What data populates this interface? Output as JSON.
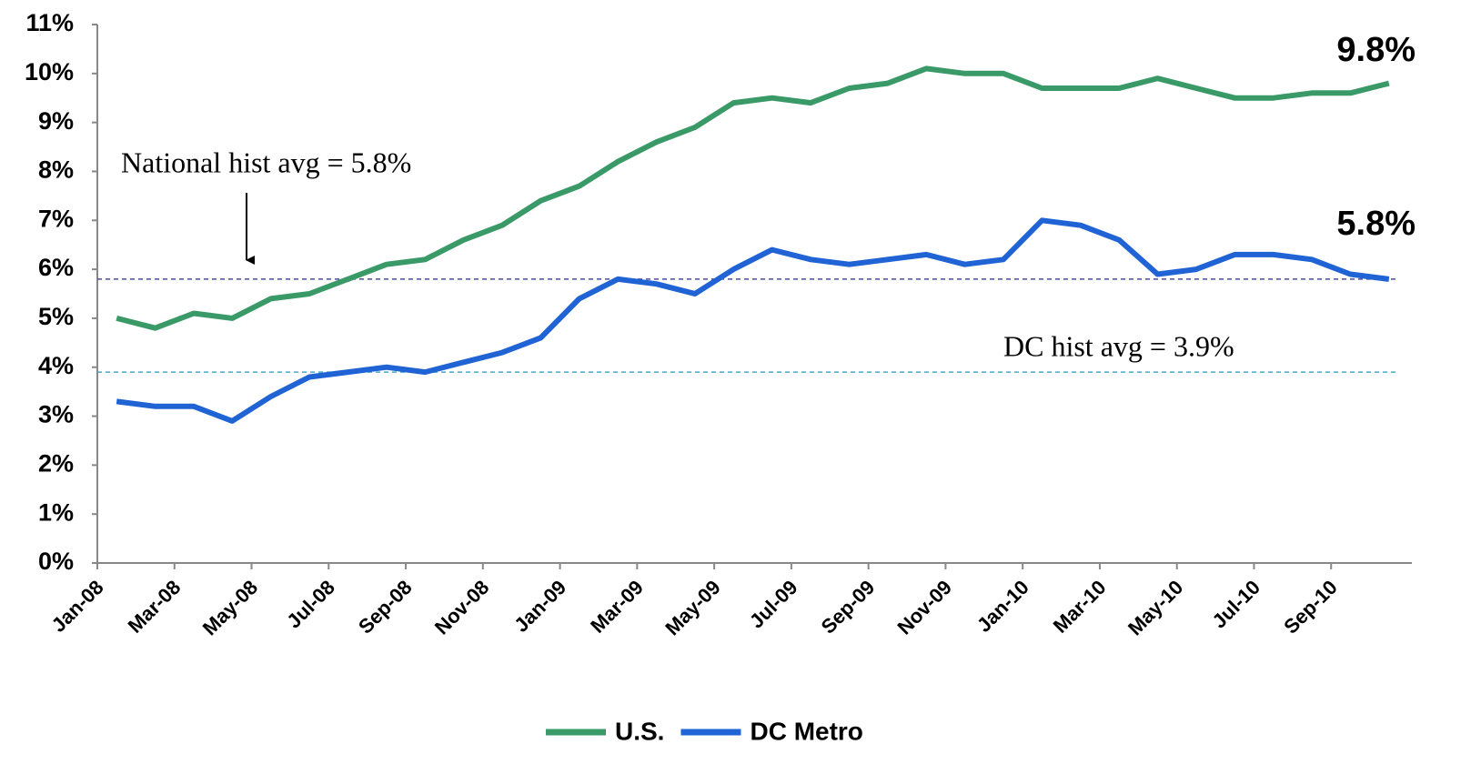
{
  "chart_data": {
    "type": "line",
    "categories": [
      "Jan-08",
      null,
      "Mar-08",
      null,
      "May-08",
      null,
      "Jul-08",
      null,
      "Sep-08",
      null,
      "Nov-08",
      null,
      "Jan-09",
      null,
      "Mar-09",
      null,
      "May-09",
      null,
      "Jul-09",
      null,
      "Sep-09",
      null,
      "Nov-09",
      null,
      "Jan-10",
      null,
      "Mar-10",
      null,
      "May-10",
      null,
      "Jul-10",
      null,
      "Sep-10",
      null
    ],
    "series": [
      {
        "name": "U.S.",
        "color": "#3a9a67",
        "end_label": "9.8%",
        "values": [
          5.0,
          4.8,
          5.1,
          5.0,
          5.4,
          5.5,
          5.8,
          6.1,
          6.2,
          6.6,
          6.9,
          7.4,
          7.7,
          8.2,
          8.6,
          8.9,
          9.4,
          9.5,
          9.4,
          9.7,
          9.8,
          10.1,
          10.0,
          10.0,
          9.7,
          9.7,
          9.7,
          9.9,
          9.7,
          9.5,
          9.5,
          9.6,
          9.6,
          9.8
        ]
      },
      {
        "name": "DC Metro",
        "color": "#1f63d4",
        "end_label": "5.8%",
        "values": [
          3.3,
          3.2,
          3.2,
          2.9,
          3.4,
          3.8,
          3.9,
          4.0,
          3.9,
          4.1,
          4.3,
          4.6,
          5.4,
          5.8,
          5.7,
          5.5,
          6.0,
          6.4,
          6.2,
          6.1,
          6.2,
          6.3,
          6.1,
          6.2,
          7.0,
          6.9,
          6.6,
          5.9,
          6.0,
          6.3,
          6.3,
          6.2,
          5.9,
          5.8
        ]
      }
    ],
    "reference_lines": [
      {
        "value": 5.8,
        "label": "National hist avg = 5.8%",
        "color": "#4b4b9a"
      },
      {
        "value": 3.9,
        "label": "DC hist avg = 3.9%",
        "color": "#4aa6c8"
      }
    ],
    "ylim": [
      0,
      11
    ],
    "yticks": [
      {
        "value": 0,
        "label": "0%"
      },
      {
        "value": 1,
        "label": "1%"
      },
      {
        "value": 2,
        "label": "2%"
      },
      {
        "value": 3,
        "label": "3%"
      },
      {
        "value": 4,
        "label": "4%"
      },
      {
        "value": 5,
        "label": "5%"
      },
      {
        "value": 6,
        "label": "6%"
      },
      {
        "value": 7,
        "label": "7%"
      },
      {
        "value": 8,
        "label": "8%"
      },
      {
        "value": 9,
        "label": "9%"
      },
      {
        "value": 10,
        "label": "10%"
      },
      {
        "value": 11,
        "label": "11%"
      }
    ],
    "legend": "bottom"
  }
}
